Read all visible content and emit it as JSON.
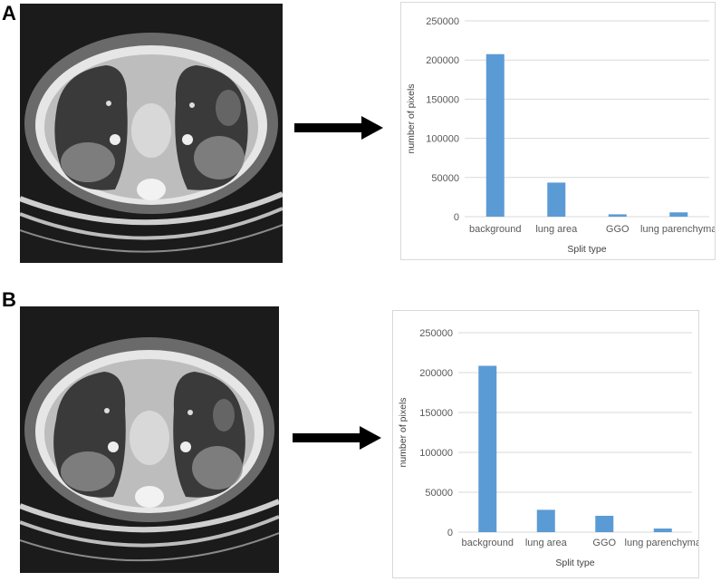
{
  "panels": [
    {
      "letter": "A"
    },
    {
      "letter": "B"
    }
  ],
  "colors": {
    "bar": "#5b9bd5",
    "grid": "#d9d9d9",
    "ct_background": "#1b1b1b",
    "arrow": "#000000"
  },
  "icons": {
    "scan": "ct-scan-image",
    "arrow": "right-arrow-icon"
  },
  "chart_data": [
    {
      "type": "bar",
      "categories": [
        "background",
        "lung area",
        "GGO",
        "lung parenchyma"
      ],
      "values": [
        207500,
        43500,
        3000,
        5500
      ],
      "xlabel": "Split type",
      "ylabel": "number of pixels",
      "ylim": [
        0,
        250000
      ],
      "yticks": [
        "0",
        "50000",
        "100000",
        "150000",
        "200000",
        "250000"
      ],
      "grid": true
    },
    {
      "type": "bar",
      "categories": [
        "background",
        "lung area",
        "GGO",
        "lung parenchyma"
      ],
      "values": [
        208500,
        28000,
        20500,
        4500
      ],
      "xlabel": "Split type",
      "ylabel": "number of pixels",
      "ylim": [
        0,
        250000
      ],
      "yticks": [
        "0",
        "50000",
        "100000",
        "150000",
        "200000",
        "250000"
      ],
      "grid": true
    }
  ]
}
